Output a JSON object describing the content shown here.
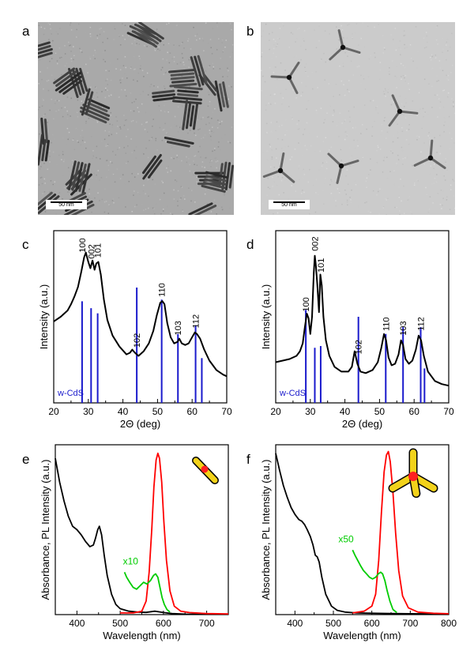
{
  "panels": {
    "a": {
      "label": "a",
      "scale_bar": "50 nm"
    },
    "b": {
      "label": "b",
      "scale_bar": "50 nm"
    },
    "c": {
      "label": "c"
    },
    "d": {
      "label": "d"
    },
    "e": {
      "label": "e",
      "annotation": "x10"
    },
    "f": {
      "label": "f",
      "annotation": "x50"
    }
  },
  "chart_data": [
    {
      "panel": "c",
      "type": "line",
      "xlabel": "2Θ (deg)",
      "ylabel": "Intensity (a.u.)",
      "xlim": [
        20,
        70
      ],
      "xticks": [
        20,
        30,
        40,
        50,
        60,
        70
      ],
      "reference_label": "w-CdS",
      "reference_color": "#1a1acc",
      "series": [
        {
          "x": [
            20,
            22,
            24,
            25,
            26,
            27,
            28,
            28.8,
            29.3,
            30,
            30.6,
            31.2,
            31.8,
            32.3,
            32.9,
            33.6,
            34.5,
            35.5,
            37,
            39,
            41,
            42,
            42.7,
            43.5,
            44.5,
            46,
            47.5,
            48.8,
            49.8,
            50.8,
            51.4,
            52,
            52.8,
            53.8,
            54.8,
            55.8,
            56.3,
            57,
            58,
            59,
            60,
            60.8,
            61.4,
            62.3,
            63.5,
            65,
            67,
            69,
            70
          ],
          "y": [
            0.52,
            0.55,
            0.59,
            0.63,
            0.68,
            0.74,
            0.84,
            0.93,
            0.96,
            0.9,
            0.86,
            0.91,
            0.85,
            0.89,
            0.9,
            0.82,
            0.66,
            0.53,
            0.43,
            0.36,
            0.31,
            0.32,
            0.34,
            0.32,
            0.3,
            0.33,
            0.38,
            0.46,
            0.56,
            0.64,
            0.65,
            0.63,
            0.51,
            0.42,
            0.38,
            0.39,
            0.41,
            0.38,
            0.37,
            0.38,
            0.42,
            0.45,
            0.44,
            0.41,
            0.34,
            0.27,
            0.21,
            0.18,
            0.17
          ]
        }
      ],
      "reference_peaks": [
        {
          "x": 28.2,
          "h": 0.59,
          "label": "100"
        },
        {
          "x": 30.8,
          "h": 0.55,
          "label": "002"
        },
        {
          "x": 32.7,
          "h": 0.52,
          "label": "101"
        },
        {
          "x": 44.0,
          "h": 0.67,
          "label": "102"
        },
        {
          "x": 51.2,
          "h": 0.6,
          "label": "110"
        },
        {
          "x": 55.9,
          "h": 0.4,
          "label": "103"
        },
        {
          "x": 61.0,
          "h": 0.45,
          "label": "112"
        },
        {
          "x": 62.8,
          "h": 0.26,
          "label": ""
        }
      ]
    },
    {
      "panel": "d",
      "type": "line",
      "xlabel": "2Θ (deg)",
      "ylabel": "Intensity (a.u.)",
      "xlim": [
        20,
        70
      ],
      "xticks": [
        20,
        30,
        40,
        50,
        60,
        70
      ],
      "reference_label": "w-CdS",
      "reference_color": "#1a1acc",
      "series": [
        {
          "x": [
            20,
            22,
            24,
            26,
            27,
            27.8,
            28.4,
            29,
            29.5,
            30,
            30.5,
            31,
            31.3,
            31.6,
            32,
            32.5,
            32.9,
            33.3,
            33.8,
            34.5,
            35.5,
            37,
            39,
            41,
            42,
            42.8,
            43.6,
            44.5,
            46,
            48,
            49.5,
            50.5,
            51.3,
            51.9,
            52.6,
            53.5,
            54.5,
            55.5,
            56.2,
            56.8,
            57.5,
            58.5,
            59.5,
            60.5,
            61.3,
            62,
            62.8,
            64,
            66,
            68,
            70
          ],
          "y": [
            0.26,
            0.27,
            0.28,
            0.3,
            0.33,
            0.38,
            0.48,
            0.57,
            0.54,
            0.44,
            0.55,
            0.83,
            0.94,
            0.88,
            0.76,
            0.58,
            0.82,
            0.75,
            0.55,
            0.4,
            0.3,
            0.23,
            0.2,
            0.2,
            0.23,
            0.33,
            0.25,
            0.2,
            0.19,
            0.21,
            0.26,
            0.35,
            0.44,
            0.4,
            0.29,
            0.24,
            0.25,
            0.31,
            0.4,
            0.37,
            0.28,
            0.25,
            0.27,
            0.34,
            0.43,
            0.4,
            0.3,
            0.2,
            0.14,
            0.12,
            0.11
          ]
        }
      ],
      "reference_peaks": [
        {
          "x": 28.7,
          "h": 0.54,
          "label": "100"
        },
        {
          "x": 31.3,
          "h": 0.32,
          "label": "002"
        },
        {
          "x": 33.0,
          "h": 0.33,
          "label": "101"
        },
        {
          "x": 43.9,
          "h": 0.5,
          "label": "102"
        },
        {
          "x": 51.8,
          "h": 0.4,
          "label": "110"
        },
        {
          "x": 56.8,
          "h": 0.44,
          "label": "103"
        },
        {
          "x": 61.9,
          "h": 0.44,
          "label": "112"
        },
        {
          "x": 63.0,
          "h": 0.2,
          "label": ""
        }
      ]
    },
    {
      "panel": "e",
      "type": "line",
      "xlabel": "Wavelength (nm)",
      "ylabel": "Absorbance, PL Intensity (a.u.)",
      "xlim": [
        350,
        750
      ],
      "xticks": [
        400,
        500,
        600,
        700
      ],
      "series": [
        {
          "color": "#000000",
          "x": [
            350,
            360,
            370,
            380,
            390,
            400,
            410,
            420,
            430,
            438,
            443,
            448,
            452,
            457,
            463,
            470,
            480,
            490,
            500,
            520,
            540,
            560,
            580,
            600,
            620,
            650,
            700,
            750
          ],
          "y": [
            0.92,
            0.78,
            0.67,
            0.58,
            0.52,
            0.5,
            0.47,
            0.43,
            0.4,
            0.41,
            0.45,
            0.5,
            0.52,
            0.47,
            0.35,
            0.23,
            0.12,
            0.06,
            0.035,
            0.02,
            0.015,
            0.013,
            0.02,
            0.012,
            0.006,
            0.003,
            0.002,
            0.002
          ]
        },
        {
          "color": "#ff0000",
          "x": [
            500,
            530,
            550,
            560,
            567,
            573,
            578,
            583,
            587,
            591,
            596,
            601,
            607,
            615,
            625,
            640,
            660,
            700,
            750
          ],
          "y": [
            0.01,
            0.01,
            0.02,
            0.08,
            0.25,
            0.5,
            0.75,
            0.91,
            0.95,
            0.92,
            0.78,
            0.55,
            0.32,
            0.14,
            0.05,
            0.02,
            0.012,
            0.006,
            0.004
          ]
        },
        {
          "color": "#00cc00",
          "x": [
            510,
            515,
            522,
            530,
            538,
            546,
            554,
            562,
            570,
            577,
            582,
            587,
            592,
            597,
            602,
            608,
            615
          ],
          "y": [
            0.25,
            0.22,
            0.19,
            0.16,
            0.15,
            0.17,
            0.19,
            0.18,
            0.2,
            0.23,
            0.24,
            0.22,
            0.16,
            0.1,
            0.06,
            0.03,
            0.015
          ]
        }
      ]
    },
    {
      "panel": "f",
      "type": "line",
      "xlabel": "Wavelength (nm)",
      "ylabel": "Absorbance, PL Intensity (a.u.)",
      "xlim": [
        350,
        800
      ],
      "xticks": [
        400,
        500,
        600,
        700,
        800
      ],
      "series": [
        {
          "color": "#000000",
          "x": [
            350,
            360,
            370,
            380,
            390,
            400,
            410,
            418,
            425,
            432,
            440,
            447,
            453,
            458,
            463,
            470,
            480,
            495,
            510,
            530,
            560,
            600,
            650,
            700,
            800
          ],
          "y": [
            0.95,
            0.85,
            0.76,
            0.69,
            0.63,
            0.59,
            0.56,
            0.55,
            0.53,
            0.5,
            0.46,
            0.41,
            0.35,
            0.34,
            0.31,
            0.22,
            0.12,
            0.05,
            0.025,
            0.015,
            0.01,
            0.008,
            0.006,
            0.005,
            0.004
          ]
        },
        {
          "color": "#ff0000",
          "x": [
            550,
            580,
            600,
            610,
            618,
            625,
            632,
            638,
            643,
            648,
            655,
            662,
            670,
            680,
            695,
            720,
            760,
            800
          ],
          "y": [
            0.01,
            0.02,
            0.05,
            0.12,
            0.32,
            0.6,
            0.84,
            0.94,
            0.96,
            0.9,
            0.72,
            0.48,
            0.26,
            0.11,
            0.04,
            0.015,
            0.008,
            0.005
          ]
        },
        {
          "color": "#00cc00",
          "x": [
            550,
            556,
            563,
            570,
            578,
            586,
            594,
            602,
            610,
            617,
            623,
            628,
            634,
            640,
            647,
            655,
            665
          ],
          "y": [
            0.38,
            0.35,
            0.32,
            0.29,
            0.26,
            0.24,
            0.22,
            0.21,
            0.22,
            0.24,
            0.25,
            0.24,
            0.2,
            0.14,
            0.08,
            0.03,
            0.012
          ]
        }
      ]
    }
  ]
}
